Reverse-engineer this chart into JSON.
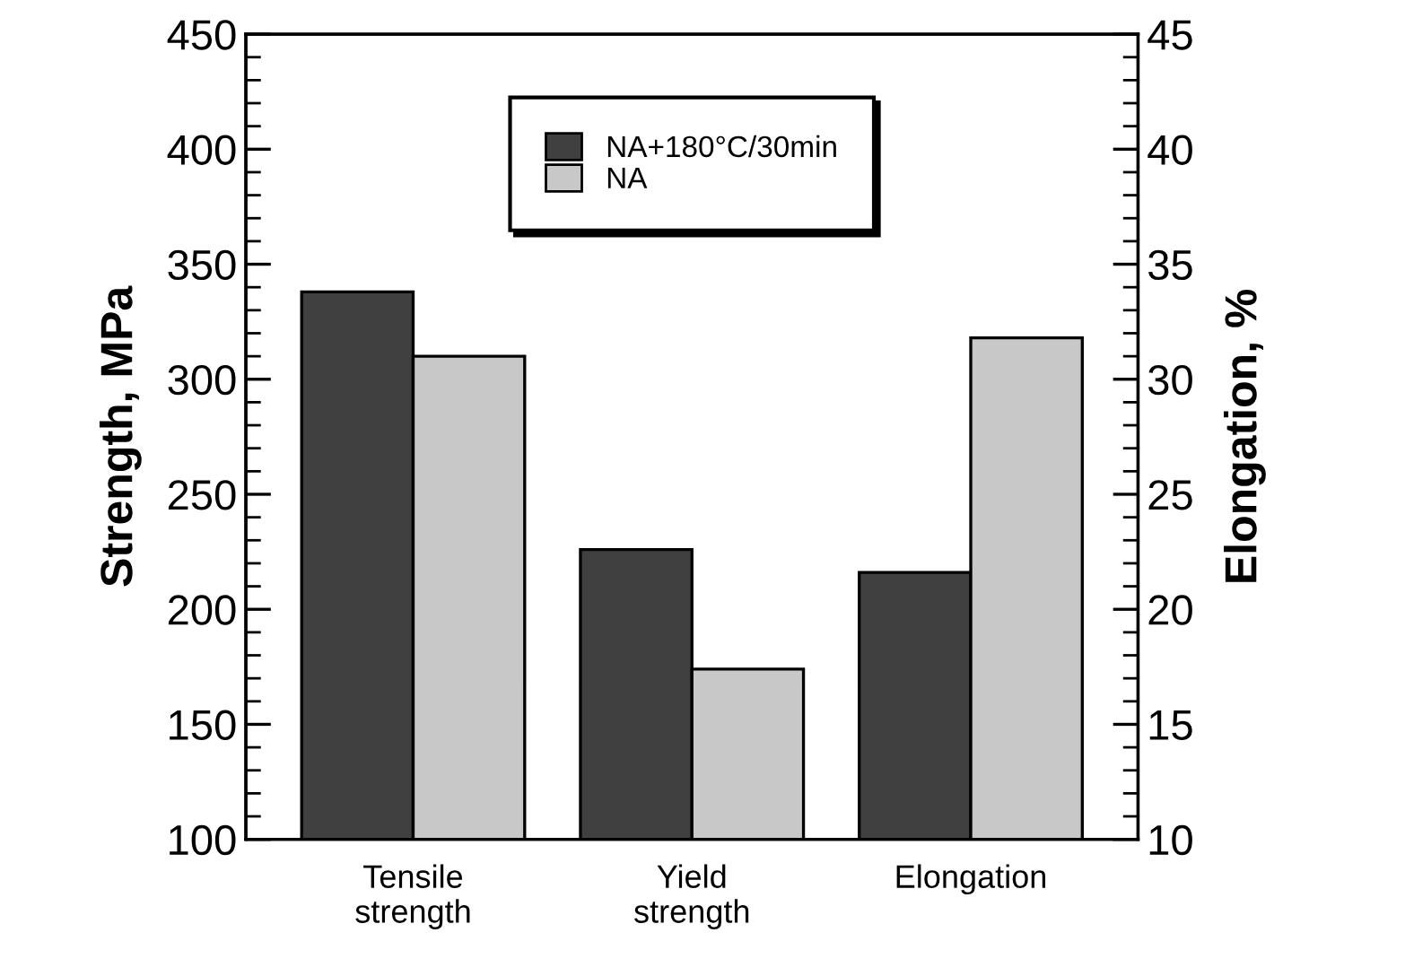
{
  "chart_data": {
    "type": "bar",
    "ylabel": "Strength, MPa",
    "y2label": "Elongation, %",
    "categories": [
      "Tensile\nstrength",
      "Yield\nstrength",
      "Elongation"
    ],
    "series": [
      {
        "name": "NA+180°C/30min",
        "color": "#404040",
        "values": [
          338,
          226,
          null
        ]
      },
      {
        "name": "NA",
        "color": "#c8c8c8",
        "values": [
          310,
          174,
          null
        ]
      },
      {
        "color": "#404040",
        "values": [
          null,
          null,
          21.6
        ],
        "axis": "y2"
      },
      {
        "color": "#c8c8c8",
        "values": [
          null,
          null,
          31.8
        ],
        "axis": "y2"
      }
    ],
    "ylim": [
      100,
      450
    ],
    "yticks": [
      100,
      150,
      200,
      250,
      300,
      350,
      400,
      450
    ],
    "y2lim": [
      10,
      45
    ],
    "y2ticks": [
      10,
      15,
      20,
      25,
      30,
      35,
      40,
      45
    ],
    "grid": false,
    "legend": "top"
  }
}
